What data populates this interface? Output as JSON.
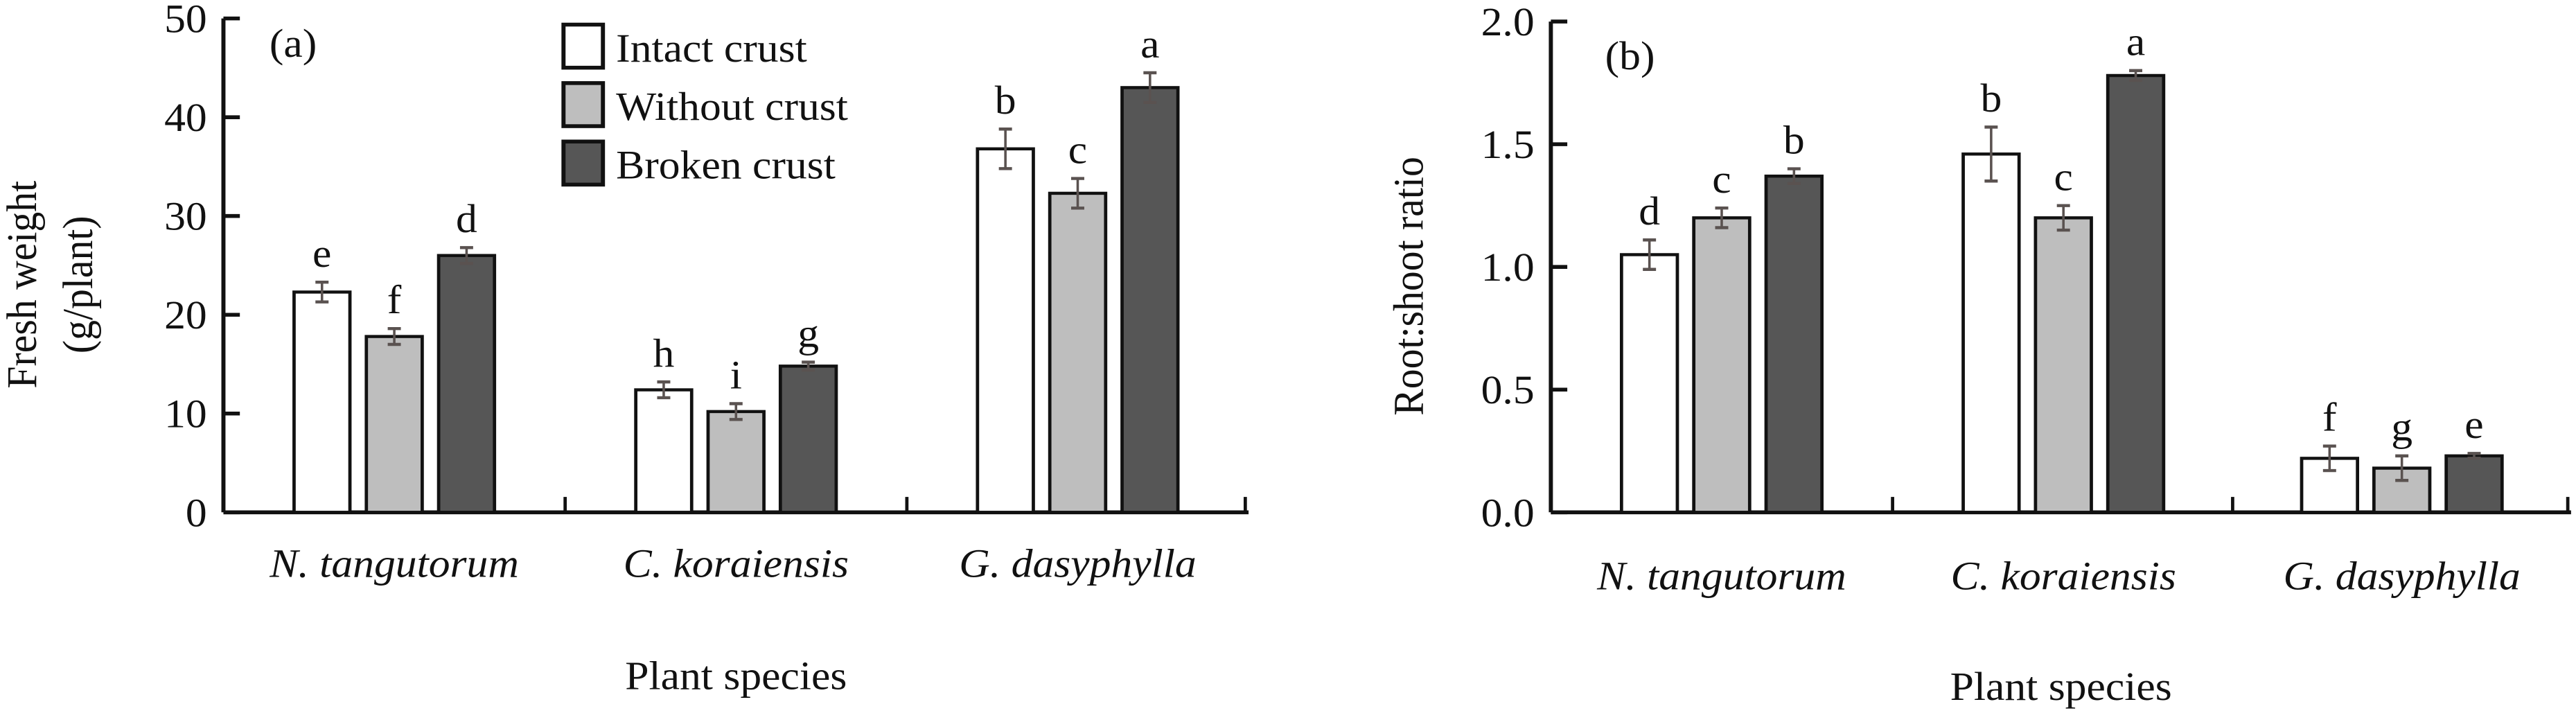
{
  "legend": [
    {
      "name": "Intact crust",
      "color": "#ffffff"
    },
    {
      "name": "Without crust",
      "color": "#bebebe"
    },
    {
      "name": "Broken crust",
      "color": "#565656"
    }
  ],
  "colors": {
    "axis": "#111111",
    "bar_edge": "#111111",
    "error_bar": "#5a5250"
  },
  "chart_data": [
    {
      "type": "bar",
      "panel": "(a)",
      "title": "",
      "xlabel": "Plant species",
      "ylabel": "Fresh weight\n(g/plant)",
      "ylabel_lines": [
        "Fresh weight",
        "(g/plant)"
      ],
      "ylim": [
        0,
        50
      ],
      "yticks": [
        0,
        10,
        20,
        30,
        40,
        50
      ],
      "ytick_labels": [
        "0",
        "10",
        "20",
        "30",
        "40",
        "50"
      ],
      "categories": [
        "N. tangutorum",
        "C. koraiensis",
        "G. dasyphylla"
      ],
      "series": [
        {
          "name": "Intact crust",
          "values": [
            22.3,
            12.4,
            36.8
          ],
          "errors": [
            1.0,
            0.8,
            2.0
          ],
          "labels": [
            "e",
            "h",
            "b"
          ]
        },
        {
          "name": "Without crust",
          "values": [
            17.8,
            10.2,
            32.3
          ],
          "errors": [
            0.8,
            0.8,
            1.5
          ],
          "labels": [
            "f",
            "i",
            "c"
          ]
        },
        {
          "name": "Broken crust",
          "values": [
            26.0,
            14.8,
            43.0
          ],
          "errors": [
            0.8,
            0.4,
            1.5
          ],
          "labels": [
            "d",
            "g",
            "a"
          ]
        }
      ],
      "legend_position": "top-center",
      "grid": false
    },
    {
      "type": "bar",
      "panel": "(b)",
      "title": "",
      "xlabel": "Plant species",
      "ylabel": "Root:shoot ratio",
      "ylabel_lines": [
        "Root:shoot ratio"
      ],
      "ylim": [
        0,
        2.0
      ],
      "yticks": [
        0,
        0.5,
        1.0,
        1.5,
        2.0
      ],
      "ytick_labels": [
        "0.0",
        "0.5",
        "1.0",
        "1.5",
        "2.0"
      ],
      "categories": [
        "N. tangutorum",
        "C. koraiensis",
        "G. dasyphylla"
      ],
      "series": [
        {
          "name": "Intact crust",
          "values": [
            1.05,
            1.46,
            0.22
          ],
          "errors": [
            0.06,
            0.11,
            0.05
          ],
          "labels": [
            "d",
            "b",
            "f"
          ]
        },
        {
          "name": "Without crust",
          "values": [
            1.2,
            1.2,
            0.18
          ],
          "errors": [
            0.04,
            0.05,
            0.05
          ],
          "labels": [
            "c",
            "c",
            "g"
          ]
        },
        {
          "name": "Broken crust",
          "values": [
            1.37,
            1.78,
            0.23
          ],
          "errors": [
            0.03,
            0.02,
            0.01
          ],
          "labels": [
            "b",
            "a",
            "e"
          ]
        }
      ],
      "grid": false
    }
  ]
}
